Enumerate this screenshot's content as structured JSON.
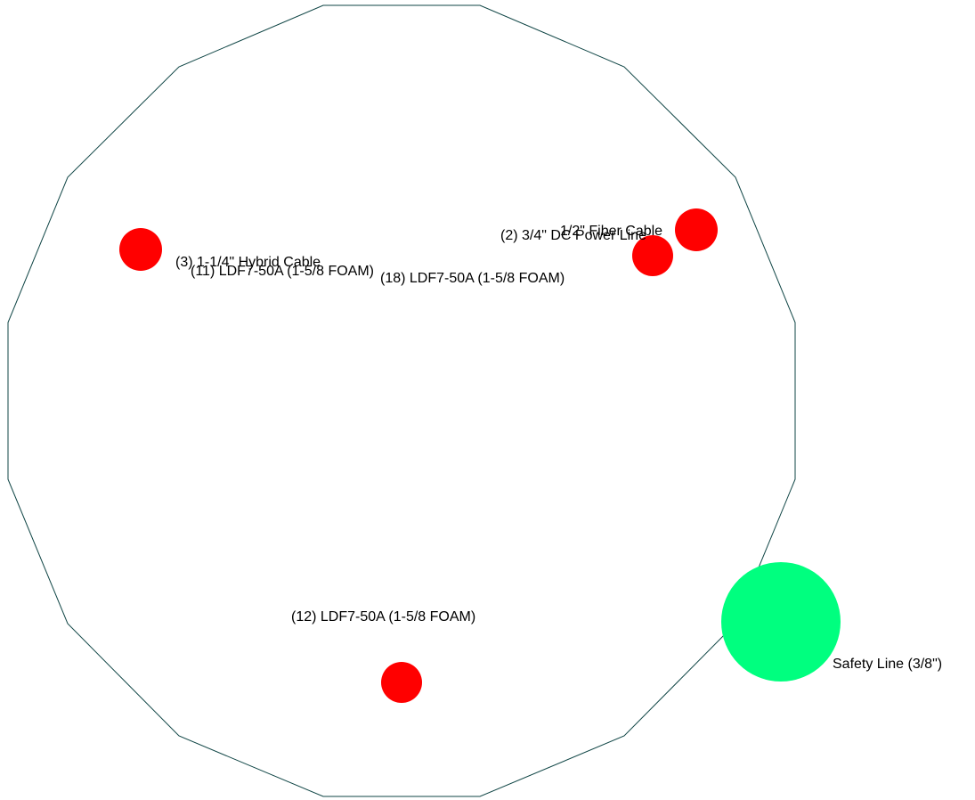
{
  "colors": {
    "outline": "#0f4545",
    "cable": "#ff0000",
    "safety": "#00ff7f",
    "background": "#ffffff"
  },
  "labels": {
    "hybrid": "(3) 1-1/4\" Hybrid Cable",
    "ldf_11": "(11) LDF7-50A (1-5/8 FOAM)",
    "ldf_18": "(18) LDF7-50A (1-5/8 FOAM)",
    "dc_power": "(2) 3/4\" DC Power Line",
    "fiber": "1/2\" Fiber Cable",
    "ldf_12": "(12) LDF7-50A (1-5/8 FOAM)",
    "safety": "Safety Line (3/8\")"
  }
}
